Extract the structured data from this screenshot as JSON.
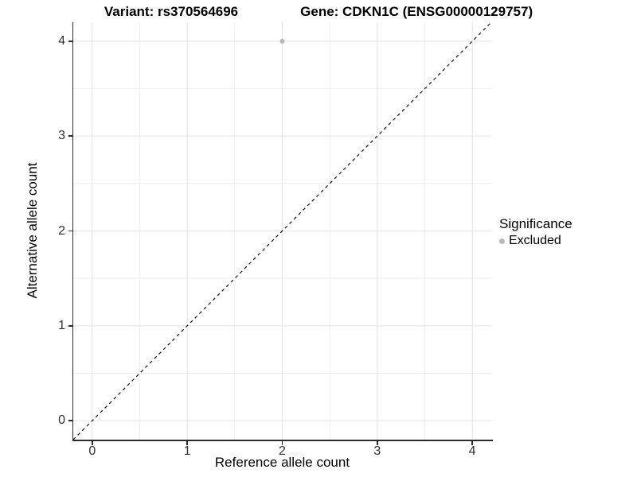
{
  "titles": {
    "variant": "Variant: rs370564696",
    "gene": "Gene: CDKN1C (ENSG00000129757)"
  },
  "axes": {
    "x_label": "Reference allele count",
    "y_label": "Alternative allele count"
  },
  "legend": {
    "title": "Significance",
    "entries": [
      {
        "label": "Excluded",
        "color": "#b8b8b8"
      }
    ]
  },
  "chart_data": {
    "type": "scatter",
    "title": "Variant: rs370564696    Gene: CDKN1C (ENSG00000129757)",
    "xlabel": "Reference allele count",
    "ylabel": "Alternative allele count",
    "xlim": [
      -0.2,
      4.2
    ],
    "ylim": [
      -0.2,
      4.2
    ],
    "x_ticks": [
      0,
      1,
      2,
      3,
      4
    ],
    "y_ticks": [
      0,
      1,
      2,
      3,
      4
    ],
    "x_minor": [
      0.5,
      1.5,
      2.5,
      3.5
    ],
    "y_minor": [
      0.5,
      1.5,
      2.5,
      3.5
    ],
    "grid": true,
    "legend_position": "right",
    "series": [
      {
        "name": "Excluded",
        "color": "#b8b8b8",
        "point_radius": 3,
        "points": [
          {
            "x": 2,
            "y": 4
          }
        ]
      }
    ],
    "reference_line": {
      "style": "dashed",
      "slope": 1,
      "intercept": 0,
      "color": "#000000",
      "dash": "4 4"
    },
    "colors": {
      "background": "#ffffff",
      "grid_major": "#e2e2e2",
      "grid_minor": "#eeeeee",
      "axis": "#2b2b2b",
      "tick_text": "#303030"
    }
  }
}
